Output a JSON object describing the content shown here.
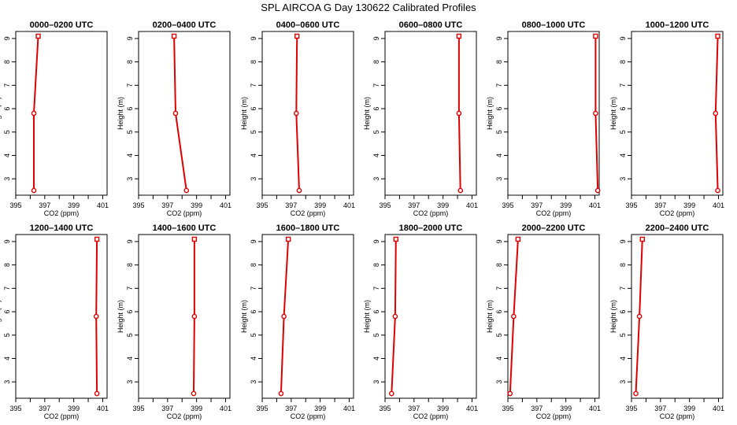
{
  "figure": {
    "title": "SPL AIRCOA G  Day 130622  Calibrated Profiles"
  },
  "colors": {
    "profile": "#e00000",
    "axis": "#000000"
  },
  "chart_data": [
    {
      "type": "line",
      "title": "0000–0200 UTC",
      "xlabel": "CO2 (ppm)",
      "ylabel": "Height (m)",
      "xlim": [
        395,
        401.3
      ],
      "ylim": [
        2.3,
        9.3
      ],
      "xticks": [
        "395",
        "397",
        "399",
        "401"
      ],
      "yticks": [
        "3",
        "4",
        "5",
        "6",
        "7",
        "8",
        "9"
      ],
      "points": [
        {
          "x": 396.25,
          "y": 2.5
        },
        {
          "x": 396.25,
          "y": 5.8
        },
        {
          "x": 396.55,
          "y": 9.1
        }
      ]
    },
    {
      "type": "line",
      "title": "0200–0400 UTC",
      "xlabel": "CO2 (ppm)",
      "ylabel": "Height (m)",
      "xlim": [
        395,
        401.3
      ],
      "ylim": [
        2.3,
        9.3
      ],
      "xticks": [
        "395",
        "397",
        "399",
        "401"
      ],
      "yticks": [
        "3",
        "4",
        "5",
        "6",
        "7",
        "8",
        "9"
      ],
      "points": [
        {
          "x": 398.3,
          "y": 2.5
        },
        {
          "x": 397.55,
          "y": 5.8
        },
        {
          "x": 397.45,
          "y": 9.1
        }
      ]
    },
    {
      "type": "line",
      "title": "0400–0600 UTC",
      "xlabel": "CO2 (ppm)",
      "ylabel": "Height (m)",
      "xlim": [
        395,
        401.3
      ],
      "ylim": [
        2.3,
        9.3
      ],
      "xticks": [
        "395",
        "397",
        "399",
        "401"
      ],
      "yticks": [
        "3",
        "4",
        "5",
        "6",
        "7",
        "8",
        "9"
      ],
      "points": [
        {
          "x": 397.55,
          "y": 2.5
        },
        {
          "x": 397.35,
          "y": 5.8
        },
        {
          "x": 397.4,
          "y": 9.1
        }
      ]
    },
    {
      "type": "line",
      "title": "0600–0800 UTC",
      "xlabel": "CO2 (ppm)",
      "ylabel": "Height (m)",
      "xlim": [
        395,
        401.3
      ],
      "ylim": [
        2.3,
        9.3
      ],
      "xticks": [
        "395",
        "397",
        "399",
        "401"
      ],
      "yticks": [
        "3",
        "4",
        "5",
        "6",
        "7",
        "8",
        "9"
      ],
      "points": [
        {
          "x": 400.2,
          "y": 2.5
        },
        {
          "x": 400.1,
          "y": 5.8
        },
        {
          "x": 400.1,
          "y": 9.1
        }
      ]
    },
    {
      "type": "line",
      "title": "0800–1000 UTC",
      "xlabel": "CO2 (ppm)",
      "ylabel": "Height (m)",
      "xlim": [
        395,
        401.3
      ],
      "ylim": [
        2.3,
        9.3
      ],
      "xticks": [
        "395",
        "397",
        "399",
        "401"
      ],
      "yticks": [
        "3",
        "4",
        "5",
        "6",
        "7",
        "8",
        "9"
      ],
      "points": [
        {
          "x": 401.2,
          "y": 2.5
        },
        {
          "x": 401.05,
          "y": 5.8
        },
        {
          "x": 401.05,
          "y": 9.1
        }
      ]
    },
    {
      "type": "line",
      "title": "1000–1200 UTC",
      "xlabel": "CO2 (ppm)",
      "ylabel": "Height (m)",
      "xlim": [
        395,
        401.3
      ],
      "ylim": [
        2.3,
        9.3
      ],
      "xticks": [
        "395",
        "397",
        "399",
        "401"
      ],
      "yticks": [
        "3",
        "4",
        "5",
        "6",
        "7",
        "8",
        "9"
      ],
      "points": [
        {
          "x": 400.95,
          "y": 2.5
        },
        {
          "x": 400.8,
          "y": 5.8
        },
        {
          "x": 400.95,
          "y": 9.1
        }
      ]
    },
    {
      "type": "line",
      "title": "1200–1400 UTC",
      "xlabel": "CO2 (ppm)",
      "ylabel": "Height (m)",
      "xlim": [
        395,
        401.3
      ],
      "ylim": [
        2.3,
        9.3
      ],
      "xticks": [
        "395",
        "397",
        "399",
        "401"
      ],
      "yticks": [
        "3",
        "4",
        "5",
        "6",
        "7",
        "8",
        "9"
      ],
      "points": [
        {
          "x": 400.6,
          "y": 2.5
        },
        {
          "x": 400.55,
          "y": 5.8
        },
        {
          "x": 400.6,
          "y": 9.1
        }
      ]
    },
    {
      "type": "line",
      "title": "1400–1600 UTC",
      "xlabel": "CO2 (ppm)",
      "ylabel": "Height (m)",
      "xlim": [
        395,
        401.3
      ],
      "ylim": [
        2.3,
        9.3
      ],
      "xticks": [
        "395",
        "397",
        "399",
        "401"
      ],
      "yticks": [
        "3",
        "4",
        "5",
        "6",
        "7",
        "8",
        "9"
      ],
      "points": [
        {
          "x": 398.8,
          "y": 2.5
        },
        {
          "x": 398.85,
          "y": 5.8
        },
        {
          "x": 398.85,
          "y": 9.1
        }
      ]
    },
    {
      "type": "line",
      "title": "1600–1800 UTC",
      "xlabel": "CO2 (ppm)",
      "ylabel": "Height (m)",
      "xlim": [
        395,
        401.3
      ],
      "ylim": [
        2.3,
        9.3
      ],
      "xticks": [
        "395",
        "397",
        "399",
        "401"
      ],
      "yticks": [
        "3",
        "4",
        "5",
        "6",
        "7",
        "8",
        "9"
      ],
      "points": [
        {
          "x": 396.3,
          "y": 2.5
        },
        {
          "x": 396.5,
          "y": 5.8
        },
        {
          "x": 396.8,
          "y": 9.1
        }
      ]
    },
    {
      "type": "line",
      "title": "1800–2000 UTC",
      "xlabel": "CO2 (ppm)",
      "ylabel": "Height (m)",
      "xlim": [
        395,
        401.3
      ],
      "ylim": [
        2.3,
        9.3
      ],
      "xticks": [
        "395",
        "397",
        "399",
        "401"
      ],
      "yticks": [
        "3",
        "4",
        "5",
        "6",
        "7",
        "8",
        "9"
      ],
      "points": [
        {
          "x": 395.45,
          "y": 2.5
        },
        {
          "x": 395.7,
          "y": 5.8
        },
        {
          "x": 395.75,
          "y": 9.1
        }
      ]
    },
    {
      "type": "line",
      "title": "2000–2200 UTC",
      "xlabel": "CO2 (ppm)",
      "ylabel": "Height (m)",
      "xlim": [
        395,
        401.3
      ],
      "ylim": [
        2.3,
        9.3
      ],
      "xticks": [
        "395",
        "397",
        "399",
        "401"
      ],
      "yticks": [
        "3",
        "4",
        "5",
        "6",
        "7",
        "8",
        "9"
      ],
      "points": [
        {
          "x": 395.15,
          "y": 2.5
        },
        {
          "x": 395.4,
          "y": 5.8
        },
        {
          "x": 395.7,
          "y": 9.1
        }
      ]
    },
    {
      "type": "line",
      "title": "2200–2400 UTC",
      "xlabel": "CO2 (ppm)",
      "ylabel": "Height (m)",
      "xlim": [
        395,
        401.3
      ],
      "ylim": [
        2.3,
        9.3
      ],
      "xticks": [
        "395",
        "397",
        "399",
        "401"
      ],
      "yticks": [
        "3",
        "4",
        "5",
        "6",
        "7",
        "8",
        "9"
      ],
      "points": [
        {
          "x": 395.3,
          "y": 2.5
        },
        {
          "x": 395.55,
          "y": 5.8
        },
        {
          "x": 395.75,
          "y": 9.1
        }
      ]
    }
  ]
}
